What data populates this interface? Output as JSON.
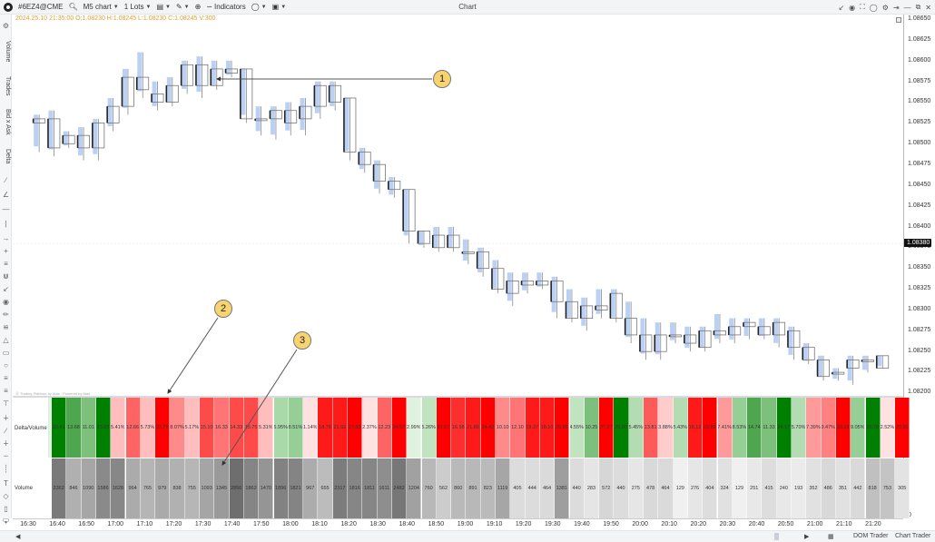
{
  "toolbar": {
    "symbol": "#6EZ4@CME",
    "chart_type": "M5 chart",
    "lots": "1 Lots",
    "indicators": "Indicators",
    "window_title": "Chart",
    "icons": [
      "search-icon",
      "template-icon",
      "draw-icon",
      "zoom-icon",
      "indicators-icon",
      "circle-icon",
      "layout-icon"
    ],
    "right_icons": [
      "collapse-icon",
      "camera-icon",
      "fullscreen-icon",
      "circle-icon",
      "gear-icon",
      "pin-icon",
      "minimize-icon",
      "restore-icon",
      "close-icon"
    ]
  },
  "ohlc_line": "2024.25.10 21:35:00 O:1.08230 H:1.08245 L:1.08230 C:1.08245 V:300",
  "left_tools": {
    "vertical_labels": [
      "Volume",
      "Trades",
      "Bid x Ask",
      "Delta"
    ],
    "icons": [
      "gear-icon",
      "line-icon",
      "angle-icon",
      "horizontal-line-icon",
      "vertical-line-icon",
      "arrow-icon",
      "cross-icon",
      "parallel-lines-icon",
      "fork-icon",
      "arrow-down-left-icon",
      "magnet-icon",
      "ruler-icon",
      "fib-icon",
      "triangle-icon",
      "rectangle-icon",
      "circle-icon",
      "fib-levels-icon",
      "fib-extension-icon",
      "pitchfork-icon",
      "signal-icon",
      "trend-angle-icon",
      "noise-icon",
      "dotted-rect-icon",
      "dotted-vrect-icon",
      "text-icon",
      "tag-icon",
      "callout-icon",
      "price-label-icon",
      "dot-icon",
      "settings-small-icon"
    ]
  },
  "price_scale": {
    "labels": [
      "1.08650",
      "1.08625",
      "1.08600",
      "1.08575",
      "1.08550",
      "1.08525",
      "1.08500",
      "1.08475",
      "1.08450",
      "1.08425",
      "1.08400",
      "1.08375",
      "1.08350",
      "1.08325",
      "1.08300",
      "1.08275",
      "1.08250",
      "1.08225",
      "1.08200"
    ],
    "current_price": "1.08380",
    "lower_pane_top": "0",
    "lower_pane_bottom": "0"
  },
  "indicator_label": "Ⓐ Trading Platform by Atas · Powered by Atas",
  "rows": {
    "delta_label": "Delta/Volume",
    "volume_label": "Volume",
    "delta_values": [
      "22.41",
      "13.68",
      "11.01",
      "23.83",
      "5.41%",
      "12.66",
      "5.73%",
      "22.78",
      "8.07%",
      "5.17%",
      "15.10",
      "16.33",
      "14.33",
      "15.75",
      "5.31%",
      "6.95%",
      "8.51%",
      "1.14%",
      "18.78",
      "21.92",
      "27.88",
      "2.37%",
      "12.23",
      "34.57",
      "2.99%",
      "5.26%",
      "31.57",
      "16.98",
      "21.89",
      "24.42",
      "10.10",
      "12.10",
      "19.37",
      "18.10",
      "25.65",
      "4.55%",
      "10.25",
      "27.27",
      "25.00",
      "5.45%",
      "13.81",
      "3.88%",
      "5.43%",
      "18.12",
      "19.89",
      "7.41%",
      "8.53%",
      "14.74",
      "11.33",
      "24.17",
      "5.70%",
      "7.39%",
      "9.47%",
      "33.33",
      "9.05%",
      "20.78",
      "2.52%",
      "20.90"
    ],
    "delta_colors": [
      "#008000",
      "#4ea64e",
      "#7cc07c",
      "#008000",
      "#ffbdbd",
      "#ff6464",
      "#ffbdbd",
      "#ff0000",
      "#ff8a8a",
      "#ffbdbd",
      "#ff4a4a",
      "#ff7575",
      "#ff4a4a",
      "#ff4a4a",
      "#ffbdbd",
      "#a9d9a9",
      "#96cf96",
      "#ffe1e1",
      "#ff1a1a",
      "#ff1a1a",
      "#ff0000",
      "#ffe1e1",
      "#ff6464",
      "#ff0000",
      "#dff1df",
      "#c0e4c0",
      "#ff0000",
      "#ff2e2e",
      "#ff1a1a",
      "#ff0000",
      "#ff8a8a",
      "#ff7575",
      "#ff1a1a",
      "#ff1a1a",
      "#ff0000",
      "#c0e4c0",
      "#7cc07c",
      "#ff0000",
      "#008000",
      "#b3dcb3",
      "#ff5a5a",
      "#ffcccc",
      "#b3dcb3",
      "#ff1a1a",
      "#ff0000",
      "#ff9a9a",
      "#96cf96",
      "#4ea64e",
      "#7cc07c",
      "#008000",
      "#b3dcb3",
      "#ff9a9a",
      "#ff8080",
      "#ff0000",
      "#96cf96",
      "#008000",
      "#ffe1e1",
      "#ff0000"
    ],
    "volume_values": [
      "2362",
      "846",
      "1090",
      "1586",
      "1628",
      "964",
      "765",
      "979",
      "838",
      "755",
      "1093",
      "1345",
      "2856",
      "1862",
      "1470",
      "1896",
      "1821",
      "967",
      "655",
      "2317",
      "1816",
      "1811",
      "1611",
      "2482",
      "1204",
      "760",
      "562",
      "860",
      "891",
      "823",
      "1119",
      "405",
      "444",
      "464",
      "1381",
      "440",
      "283",
      "572",
      "440",
      "275",
      "478",
      "464",
      "129",
      "276",
      "404",
      "324",
      "129",
      "251",
      "415",
      "240",
      "193",
      "352",
      "486",
      "351",
      "442",
      "818",
      "753",
      "305"
    ],
    "volume_shades": [
      "#7a7a7a",
      "#b0b0b0",
      "#a6a6a6",
      "#8a8a8a",
      "#878787",
      "#ababab",
      "#b5b5b5",
      "#aaaaaa",
      "#b1b1b1",
      "#b6b6b6",
      "#a5a5a5",
      "#9a9a9a",
      "#6e6e6e",
      "#858585",
      "#959595",
      "#828282",
      "#848484",
      "#acacac",
      "#bcbcbc",
      "#7c7c7c",
      "#868686",
      "#868686",
      "#8e8e8e",
      "#777777",
      "#a1a1a1",
      "#b8b8b8",
      "#cccccc",
      "#b9b9b9",
      "#b8b8b8",
      "#bababa",
      "#a6a6a6",
      "#dcdcdc",
      "#dcdcdc",
      "#dadada",
      "#9e9e9e",
      "#dcdcdc",
      "#e5e5e5",
      "#d6d6d6",
      "#dcdcdc",
      "#e6e6e6",
      "#d9d9d9",
      "#dadada",
      "#f0f0f0",
      "#e6e6e6",
      "#dddddd",
      "#e1e1e1",
      "#f0f0f0",
      "#e8e8e8",
      "#dddddd",
      "#e8e8e8",
      "#ebebeb",
      "#e1e1e1",
      "#d8d8d8",
      "#e1e1e1",
      "#d9d9d9",
      "#c0c0c0",
      "#c4c4c4",
      "#e3e3e3"
    ]
  },
  "time_axis": [
    "16:30",
    "16:40",
    "16:50",
    "17:00",
    "17:10",
    "17:20",
    "17:30",
    "17:40",
    "17:50",
    "18:00",
    "18:10",
    "18:20",
    "18:30",
    "18:40",
    "18:50",
    "19:00",
    "19:10",
    "19:20",
    "19:30",
    "19:40",
    "19:50",
    "20:00",
    "20:10",
    "20:20",
    "20:30",
    "20:40",
    "20:50",
    "21:00",
    "21:10",
    "21:20"
  ],
  "bottom_bar": {
    "dom_trader": "DOM Trader",
    "chart_trader": "Chart Trader"
  },
  "callouts": [
    "1",
    "2",
    "3"
  ],
  "candles": [
    [
      1.08525,
      1.0853,
      1.0849,
      1.08535
    ],
    [
      1.0853,
      1.08495,
      1.08485,
      1.0854
    ],
    [
      1.085,
      1.0851,
      1.08495,
      1.08515
    ],
    [
      1.0851,
      1.08495,
      1.0848,
      1.0852
    ],
    [
      1.08495,
      1.08525,
      1.0848,
      1.0853
    ],
    [
      1.08525,
      1.08545,
      1.08515,
      1.08555
    ],
    [
      1.08545,
      1.0858,
      1.08535,
      1.0859
    ],
    [
      1.0858,
      1.08565,
      1.08555,
      1.0861
    ],
    [
      1.0856,
      1.0855,
      1.0854,
      1.08575
    ],
    [
      1.0855,
      1.0857,
      1.08545,
      1.0858
    ],
    [
      1.0857,
      1.08595,
      1.0856,
      1.086
    ],
    [
      1.08595,
      1.0857,
      1.08555,
      1.08605
    ],
    [
      1.0857,
      1.0859,
      1.08565,
      1.086
    ],
    [
      1.0859,
      1.08585,
      1.0858,
      1.086
    ],
    [
      1.0859,
      1.0853,
      1.08525,
      1.0859
    ],
    [
      1.0853,
      1.0853,
      1.0851,
      1.08545
    ],
    [
      1.0853,
      1.0854,
      1.08505,
      1.08545
    ],
    [
      1.08525,
      1.0854,
      1.0851,
      1.0855
    ],
    [
      1.0853,
      1.08545,
      1.0851,
      1.08555
    ],
    [
      1.08545,
      1.0857,
      1.0853,
      1.08575
    ],
    [
      1.0857,
      1.0855,
      1.0854,
      1.08575
    ],
    [
      1.08555,
      1.0849,
      1.0848,
      1.08555
    ],
    [
      1.0849,
      1.08475,
      1.08465,
      1.08495
    ],
    [
      1.08475,
      1.08455,
      1.0844,
      1.0848
    ],
    [
      1.08455,
      1.08445,
      1.08435,
      1.0846
    ],
    [
      1.08445,
      1.08395,
      1.0838,
      1.08445
    ],
    [
      1.08395,
      1.0838,
      1.08375,
      1.08395
    ],
    [
      1.08375,
      1.0839,
      1.0837,
      1.084
    ],
    [
      1.0839,
      1.08375,
      1.0837,
      1.084
    ],
    [
      1.0837,
      1.0837,
      1.08355,
      1.08385
    ],
    [
      1.0837,
      1.0835,
      1.0834,
      1.08375
    ],
    [
      1.0835,
      1.08325,
      1.0832,
      1.0836
    ],
    [
      1.0832,
      1.08335,
      1.08305,
      1.08345
    ],
    [
      1.08335,
      1.0833,
      1.0832,
      1.08345
    ],
    [
      1.0833,
      1.08335,
      1.08325,
      1.08345
    ],
    [
      1.08335,
      1.0831,
      1.0829,
      1.0834
    ],
    [
      1.0831,
      1.0829,
      1.08285,
      1.08325
    ],
    [
      1.0829,
      1.08305,
      1.08275,
      1.08315
    ],
    [
      1.08305,
      1.083,
      1.0829,
      1.08325
    ],
    [
      1.0832,
      1.0829,
      1.08285,
      1.08325
    ],
    [
      1.0829,
      1.0827,
      1.0826,
      1.0831
    ],
    [
      1.0827,
      1.0825,
      1.0824,
      1.0829
    ],
    [
      1.0825,
      1.0827,
      1.0824,
      1.08285
    ],
    [
      1.0827,
      1.0827,
      1.0826,
      1.08285
    ],
    [
      1.0827,
      1.0826,
      1.0825,
      1.0828
    ],
    [
      1.08255,
      1.08275,
      1.0825,
      1.0828
    ],
    [
      1.08275,
      1.0827,
      1.0826,
      1.08295
    ],
    [
      1.0827,
      1.0828,
      1.0826,
      1.0829
    ],
    [
      1.0828,
      1.08285,
      1.08265,
      1.0829
    ],
    [
      1.0828,
      1.0827,
      1.08265,
      1.0829
    ],
    [
      1.08285,
      1.0827,
      1.08255,
      1.0829
    ],
    [
      1.08275,
      1.08255,
      1.0824,
      1.0828
    ],
    [
      1.08255,
      1.0824,
      1.08235,
      1.0826
    ],
    [
      1.0824,
      1.0822,
      1.08215,
      1.08245
    ],
    [
      1.08225,
      1.08225,
      1.08215,
      1.0823
    ],
    [
      1.0823,
      1.0824,
      1.0821,
      1.08245
    ],
    [
      1.0824,
      1.0824,
      1.08225,
      1.08245
    ],
    [
      1.0823,
      1.08245,
      1.0823,
      1.08245
    ]
  ]
}
